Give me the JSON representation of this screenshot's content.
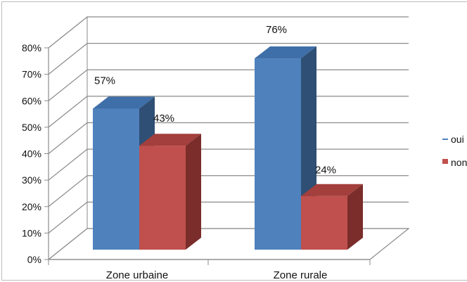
{
  "chart_data": {
    "type": "bar",
    "title": "",
    "xlabel": "",
    "ylabel": "",
    "categories": [
      "Zone urbaine",
      "Zone rurale"
    ],
    "series": [
      {
        "name": "oui",
        "values": [
          57,
          76
        ],
        "labels": [
          "57%",
          "76%"
        ],
        "color": "#4f81bd",
        "top_color": "#3f6fa8",
        "side_color": "#2f4f74"
      },
      {
        "name": "non",
        "values": [
          43,
          24
        ],
        "labels": [
          "43%",
          "24%"
        ],
        "color": "#c0504d",
        "top_color": "#a33f3c",
        "side_color": "#7a2d2b"
      }
    ],
    "ylim": [
      0,
      80
    ],
    "yticks": [
      "0%",
      "10%",
      "20%",
      "30%",
      "40%",
      "50%",
      "60%",
      "70%",
      "80%"
    ],
    "grid": true,
    "legend_position": "right",
    "three_d": true
  }
}
